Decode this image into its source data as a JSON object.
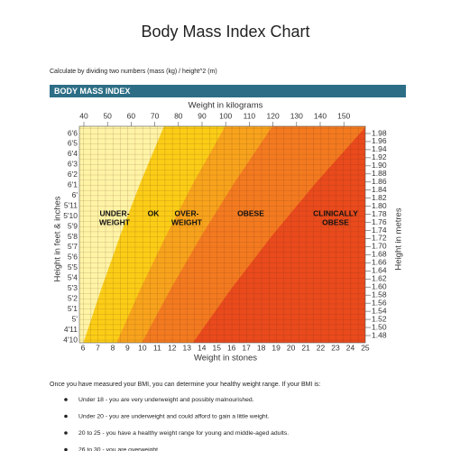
{
  "header": {
    "title": "Body Mass Index Chart",
    "subtitle": "Calculate by dividing two numbers (mass (kg) / height^2 (m)"
  },
  "figure": {
    "banner": "BODY MASS INDEX",
    "top_axis_title": "Weight in kilograms",
    "top_axis_labels": [
      "40",
      "50",
      "60",
      "70",
      "80",
      "90",
      "100",
      "110",
      "120",
      "130",
      "140",
      "150"
    ],
    "bottom_axis_title": "Weight in stones",
    "bottom_axis_labels": [
      "6",
      "7",
      "8",
      "9",
      "10",
      "11",
      "12",
      "13",
      "14",
      "15",
      "16",
      "17",
      "18",
      "19",
      "20",
      "21",
      "22",
      "23",
      "24",
      "25"
    ],
    "left_axis_title": "Height in feet & inches",
    "left_axis_labels": [
      "6'6",
      "6'5",
      "6'4",
      "6'3",
      "6'2",
      "6'1",
      "6'",
      "5'11",
      "5'10",
      "5'9",
      "5'8",
      "5'7",
      "5'6",
      "5'5",
      "5'4",
      "5'3",
      "5'2",
      "5'1",
      "5'",
      "4'11",
      "4'10"
    ],
    "right_axis_title": "Height in metres",
    "right_axis_labels": [
      "1.98",
      "1.96",
      "1.94",
      "1.92",
      "1.90",
      "1.88",
      "1.86",
      "1.84",
      "1.82",
      "1.80",
      "1.78",
      "1.76",
      "1.74",
      "1.72",
      "1.70",
      "1.68",
      "1.66",
      "1.64",
      "1.62",
      "1.60",
      "1.58",
      "1.56",
      "1.54",
      "1.52",
      "1.50",
      "1.48"
    ],
    "zones": [
      [
        "UNDER-",
        "WEIGHT"
      ],
      [
        "OK"
      ],
      [
        "OVER-",
        "WEIGHT"
      ],
      [
        "OBESE"
      ],
      [
        "CLINICALLY",
        "OBESE"
      ]
    ]
  },
  "body": {
    "intro": "Once you have measured your BMI, you can determine your healthy weight range. If your BMI is:",
    "bullets": [
      "Under 18 - you are very underweight and possibly malnourished.",
      "Under 20 - you are underweight and could afford to gain a little weight.",
      "20 to 25 - you have a healthy weight range for young and middle-aged adults.",
      "26 to 30 - you are overweight"
    ]
  }
}
